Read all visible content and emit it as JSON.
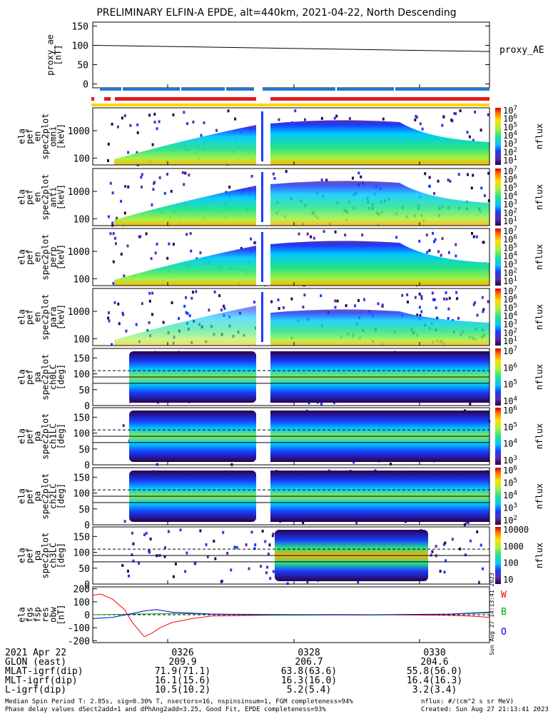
{
  "title": "PRELIMINARY ELFIN-A EPDE, alt=440km, 2021-04-22, North Descending",
  "chart_data": [
    {
      "type": "line",
      "ylabel": [
        "proxy_ae",
        "[nT]"
      ],
      "ylim": [
        -10,
        160
      ],
      "yticks": [
        "150",
        "100",
        "50",
        "0"
      ],
      "legend": "proxy_AE",
      "x": [
        0,
        1
      ],
      "values": [
        100,
        84
      ]
    },
    {
      "type": "heatmap",
      "ylabel": [
        "ela",
        "pef",
        "en",
        "spec2plot",
        "omni",
        "[keV]"
      ],
      "yticks": [
        "1000",
        "100"
      ],
      "colorbar": {
        "ticks": [
          "10^7",
          "10^6",
          "10^5",
          "10^4",
          "10^3",
          "10^2",
          "10^1"
        ],
        "label": "nflux"
      }
    },
    {
      "type": "heatmap",
      "ylabel": [
        "ela",
        "pef",
        "en",
        "spec2plot",
        "anti",
        "[keV]"
      ],
      "yticks": [
        "1000",
        "100"
      ],
      "colorbar": {
        "ticks": [
          "10^7",
          "10^6",
          "10^5",
          "10^4",
          "10^3",
          "10^2",
          "10^1"
        ],
        "label": "nflux"
      }
    },
    {
      "type": "heatmap",
      "ylabel": [
        "ela",
        "pef",
        "en",
        "spec2plot",
        "perp",
        "[keV]"
      ],
      "yticks": [
        "1000",
        "100"
      ],
      "colorbar": {
        "ticks": [
          "10^7",
          "10^6",
          "10^5",
          "10^4",
          "10^3",
          "10^2",
          "10^1"
        ],
        "label": "nflux"
      }
    },
    {
      "type": "heatmap",
      "ylabel": [
        "ela",
        "pef",
        "en",
        "spec2plot",
        "para",
        "[keV]"
      ],
      "yticks": [
        "1000",
        "100"
      ],
      "colorbar": {
        "ticks": [
          "10^7",
          "10^6",
          "10^5",
          "10^4",
          "10^3",
          "10^2",
          "10^1"
        ],
        "label": "nflux"
      }
    },
    {
      "type": "heatmap",
      "ylabel": [
        "ela",
        "pef",
        "pa",
        "spec2plot",
        "ch0LC",
        "[deg]"
      ],
      "yticks": [
        "150",
        "100",
        "50",
        "0"
      ],
      "colorbar": {
        "ticks": [
          "10^7",
          "10^6",
          "10^5",
          "10^4"
        ],
        "label": "nflux"
      }
    },
    {
      "type": "heatmap",
      "ylabel": [
        "ela",
        "pef",
        "pa",
        "spec2plot",
        "ch1LC",
        "[deg]"
      ],
      "yticks": [
        "150",
        "100",
        "50",
        "0"
      ],
      "colorbar": {
        "ticks": [
          "10^6",
          "10^5",
          "10^4",
          "10^3"
        ],
        "label": "nflux"
      }
    },
    {
      "type": "heatmap",
      "ylabel": [
        "ela",
        "pef",
        "pa",
        "spec2plot",
        "ch2LC",
        "[deg]"
      ],
      "yticks": [
        "150",
        "100",
        "50",
        "0"
      ],
      "colorbar": {
        "ticks": [
          "10^6",
          "10^5",
          "10^4",
          "10^3",
          "10^2"
        ],
        "label": "nflux"
      }
    },
    {
      "type": "heatmap",
      "ylabel": [
        "ela",
        "pef",
        "pa",
        "spec2plot",
        "ch3LC",
        "[deg]"
      ],
      "yticks": [
        "150",
        "100",
        "50",
        "0"
      ],
      "colorbar": {
        "ticks": [
          "10000",
          "1000",
          "100",
          "10"
        ],
        "label": "nflux"
      }
    },
    {
      "type": "line",
      "ylabel": [
        "ela",
        "fgs",
        "fsp",
        "res",
        "obw",
        "[nT]"
      ],
      "ylim": [
        -215,
        215
      ],
      "yticks": [
        "200",
        "100",
        "0",
        "-100",
        "-200"
      ],
      "series": [
        {
          "name": "W",
          "color": "#ff0000",
          "x": [
            0,
            0.02,
            0.05,
            0.08,
            0.1,
            0.13,
            0.15,
            0.17,
            0.2,
            0.25,
            0.3,
            0.4,
            0.5,
            0.6,
            0.7,
            0.8,
            0.9,
            0.95,
            1.0
          ],
          "values": [
            150,
            160,
            120,
            40,
            -60,
            -170,
            -140,
            -100,
            -60,
            -30,
            -10,
            -5,
            0,
            2,
            0,
            -2,
            -5,
            -10,
            -20
          ]
        },
        {
          "name": "B",
          "color": "#00aa00",
          "x": [
            0,
            0.1,
            0.2,
            0.3,
            0.5,
            0.7,
            0.9,
            1.0
          ],
          "values": [
            0,
            5,
            10,
            5,
            2,
            -2,
            5,
            15
          ]
        },
        {
          "name": "O",
          "color": "#0000dd",
          "x": [
            0,
            0.05,
            0.1,
            0.13,
            0.16,
            0.2,
            0.3,
            0.4,
            0.5,
            0.7,
            0.9,
            1.0
          ],
          "values": [
            -30,
            -20,
            10,
            30,
            40,
            20,
            5,
            0,
            -2,
            0,
            5,
            20
          ]
        }
      ]
    }
  ],
  "bar_colors": {
    "red": "#e31a1c",
    "blue": "#1f78d4",
    "yellow": "#ffd500"
  },
  "xaxis": {
    "date": "2021 Apr 22",
    "ticks": [
      "0326",
      "0328",
      "0330"
    ],
    "rows": [
      {
        "label": "GLON (east)",
        "v": [
          "209.9",
          "206.7",
          "204.6"
        ]
      },
      {
        "label": "MLAT-igrf(dip)",
        "v": [
          "71.9(71.1)",
          "63.8(63.6)",
          "55.8(56.0)"
        ]
      },
      {
        "label": "MLT-igrf(dip)",
        "v": [
          "16.1(15.6)",
          "16.3(16.0)",
          "16.4(16.3)"
        ]
      },
      {
        "label": "L-igrf(dip)",
        "v": [
          "10.5(10.2)",
          "5.2(5.4)",
          "3.2(3.4)"
        ]
      }
    ]
  },
  "footer": {
    "line1": "Median Spin Period T: 2.85s, sig=0.30% T, nsectors=16, nspinsinsum=1, FGM completeness=94%",
    "line2": "Phase delay values dSect2add=1 and dPhAng2add=3.25, Good Fit, EPDE completeness=93%",
    "units": "nflux: #/(cm^2 s sr MeV)",
    "created": "Created: Sun Aug 27 21:13:41 2023",
    "stamp": "Sun Aug 27 14:13:41 2023"
  }
}
